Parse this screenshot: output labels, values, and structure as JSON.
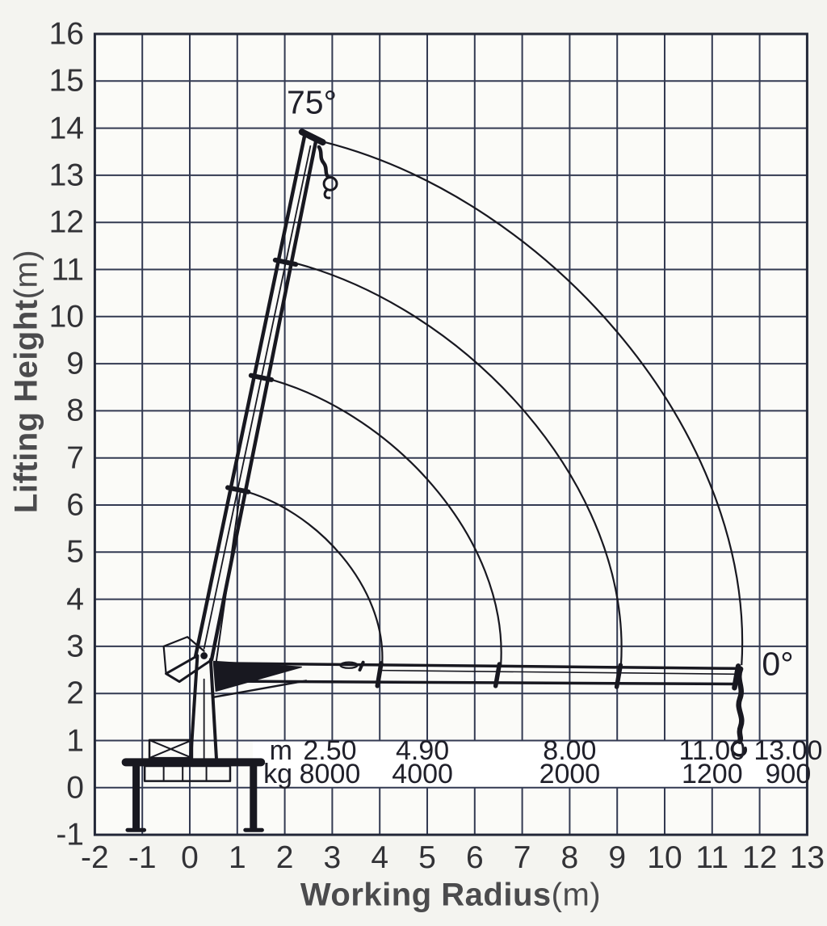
{
  "chart_data": {
    "type": "line",
    "subtype": "crane-working-envelope",
    "title": "",
    "xlabel": "Working Radius",
    "xlabel_unit": "(m)",
    "ylabel": "Lifting Height",
    "ylabel_unit": "(m)",
    "xlim": [
      -2,
      13
    ],
    "ylim": [
      -1,
      16
    ],
    "grid": "on",
    "legend": "none",
    "x_ticks": [
      -2,
      -1,
      0,
      1,
      2,
      3,
      4,
      5,
      6,
      7,
      8,
      9,
      10,
      11,
      12,
      13
    ],
    "y_ticks": [
      -1,
      0,
      1,
      2,
      3,
      4,
      5,
      6,
      7,
      8,
      9,
      10,
      11,
      12,
      13,
      14,
      15,
      16
    ],
    "boom_angle_max_label": "75°",
    "boom_angle_min_label": "0°",
    "capacity_table": {
      "row_labels": {
        "radius": "m",
        "capacity": "kg"
      },
      "columns": [
        {
          "radius_m": "2.50",
          "capacity_kg": "8000"
        },
        {
          "radius_m": "4.90",
          "capacity_kg": "4000"
        },
        {
          "radius_m": "8.00",
          "capacity_kg": "2000"
        },
        {
          "radius_m": "11.00",
          "capacity_kg": "1200"
        },
        {
          "radius_m": "13.00",
          "capacity_kg": "900"
        }
      ]
    },
    "envelope": {
      "pivot": [
        0.3,
        2.6
      ],
      "stages": [
        {
          "tip_75deg": [
            1.06,
            6.32
          ],
          "reach_0deg": 4.05
        },
        {
          "tip_75deg": [
            1.5,
            8.72
          ],
          "reach_0deg": 6.55
        },
        {
          "tip_75deg": [
            2.05,
            11.18
          ],
          "reach_0deg": 9.08
        },
        {
          "tip_75deg": [
            2.85,
            13.7
          ],
          "reach_0deg": 11.62
        }
      ]
    }
  },
  "colors": {
    "ink": "#181820",
    "grid": "#333a52",
    "border": "#232838",
    "paper": "#f4f4f0",
    "plot_bg": "#fbfbf8",
    "band": "#ffffff",
    "tick_text": "#323236",
    "table_text": "#20202a",
    "title_text": "#4b4b4d"
  }
}
